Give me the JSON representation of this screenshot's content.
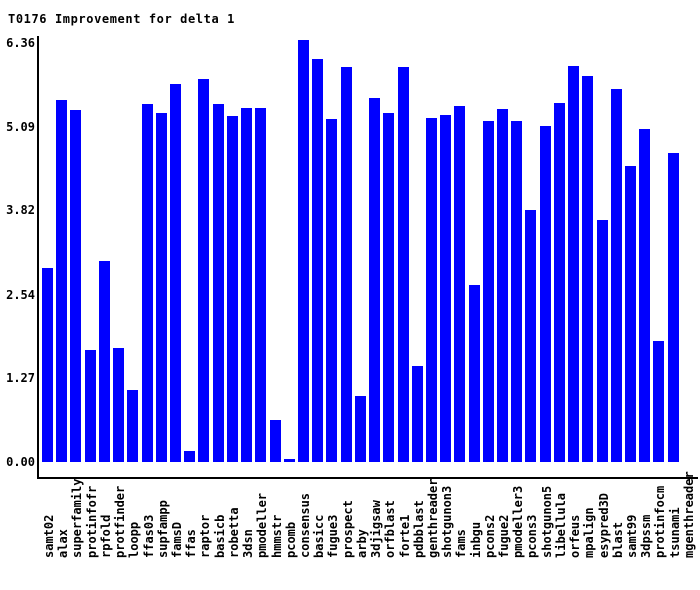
{
  "title": "T0176 Improvement for delta 1",
  "chart_data": {
    "type": "bar",
    "title": "T0176 Improvement for delta 1",
    "bar_color": "#0000ff",
    "axis_color": "#000000",
    "background_color": "#ffffff",
    "legend": "none",
    "grid": false,
    "ylim": [
      0,
      6.36
    ],
    "ytick_labels": [
      "0.00",
      "1.27",
      "2.54",
      "3.82",
      "5.09",
      "6.36"
    ],
    "yticks": [
      0.0,
      1.27,
      2.54,
      3.82,
      5.09,
      6.36
    ],
    "categories": [
      "samt02",
      "alax",
      "superfamily",
      "protinfofr",
      "rpfold",
      "protfinder",
      "loopp",
      "ffas03",
      "supfampp",
      "famsD",
      "ffas",
      "raptor",
      "basicb",
      "robetta",
      "3dsn",
      "pmodeller",
      "hmmstr",
      "pcomb",
      "consensus",
      "basicc",
      "fugue3",
      "prospect",
      "arby",
      "3djigsaw",
      "orfblast",
      "forte1",
      "pdbblast",
      "genthreader",
      "shotgunon3",
      "fams",
      "inbgu",
      "pcons2",
      "fugue2",
      "pmodeller3",
      "pcons3",
      "shotgunon5",
      "libellula",
      "orfeus",
      "mpalign",
      "esypred3D",
      "blast",
      "samt99",
      "3dpssm",
      "protinfocm",
      "tsunami",
      "mgenthreader"
    ],
    "values": [
      2.95,
      5.5,
      5.34,
      1.7,
      3.05,
      1.73,
      1.09,
      5.43,
      5.3,
      5.74,
      0.17,
      5.81,
      5.43,
      5.25,
      5.38,
      5.37,
      0.64,
      0.05,
      6.41,
      6.11,
      5.2,
      6.0,
      1.0,
      5.52,
      5.3,
      5.99,
      1.45,
      5.22,
      5.26,
      5.41,
      2.69,
      5.17,
      5.36,
      5.17,
      3.82,
      5.1,
      5.45,
      6.01,
      5.86,
      3.67,
      5.66,
      4.49,
      5.05,
      1.84,
      4.69,
      0.0
    ]
  }
}
